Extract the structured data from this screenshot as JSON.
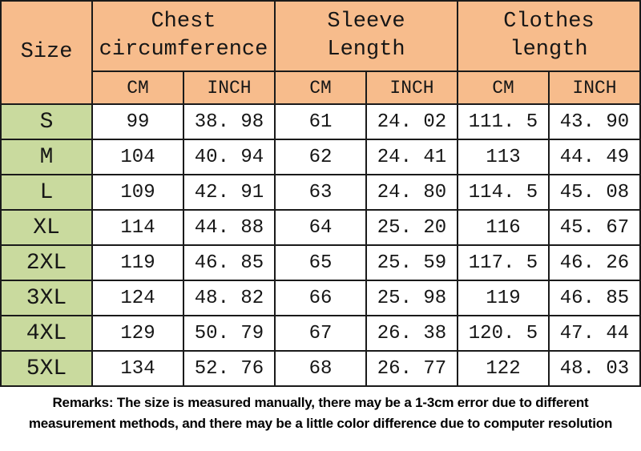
{
  "chart_data": {
    "type": "table",
    "title": "Garment size chart",
    "column_groups": [
      {
        "label": "Size",
        "span": 1
      },
      {
        "label": "Chest circumference",
        "span": 2
      },
      {
        "label": "Sleeve Length",
        "span": 2
      },
      {
        "label": "Clothes length",
        "span": 2
      }
    ],
    "unit_row": [
      "CM",
      "INCH",
      "CM",
      "INCH",
      "CM",
      "INCH"
    ],
    "rows": [
      {
        "size": "S",
        "chest_cm": 99,
        "chest_inch": 38.98,
        "sleeve_cm": 61,
        "sleeve_inch": 24.02,
        "clothes_cm": 111.5,
        "clothes_inch": 43.9
      },
      {
        "size": "M",
        "chest_cm": 104,
        "chest_inch": 40.94,
        "sleeve_cm": 62,
        "sleeve_inch": 24.41,
        "clothes_cm": 113,
        "clothes_inch": 44.49
      },
      {
        "size": "L",
        "chest_cm": 109,
        "chest_inch": 42.91,
        "sleeve_cm": 63,
        "sleeve_inch": 24.8,
        "clothes_cm": 114.5,
        "clothes_inch": 45.08
      },
      {
        "size": "XL",
        "chest_cm": 114,
        "chest_inch": 44.88,
        "sleeve_cm": 64,
        "sleeve_inch": 25.2,
        "clothes_cm": 116,
        "clothes_inch": 45.67
      },
      {
        "size": "2XL",
        "chest_cm": 119,
        "chest_inch": 46.85,
        "sleeve_cm": 65,
        "sleeve_inch": 25.59,
        "clothes_cm": 117.5,
        "clothes_inch": 46.26
      },
      {
        "size": "3XL",
        "chest_cm": 124,
        "chest_inch": 48.82,
        "sleeve_cm": 66,
        "sleeve_inch": 25.98,
        "clothes_cm": 119,
        "clothes_inch": 46.85
      },
      {
        "size": "4XL",
        "chest_cm": 129,
        "chest_inch": 50.79,
        "sleeve_cm": 67,
        "sleeve_inch": 26.38,
        "clothes_cm": 120.5,
        "clothes_inch": 47.44
      },
      {
        "size": "5XL",
        "chest_cm": 134,
        "chest_inch": 52.76,
        "sleeve_cm": 68,
        "sleeve_inch": 26.77,
        "clothes_cm": 122,
        "clothes_inch": 48.03
      }
    ]
  },
  "table": {
    "size_header": "Size",
    "groups": [
      {
        "line1": "Chest",
        "line2": "circumference"
      },
      {
        "line1": "Sleeve",
        "line2": "Length"
      },
      {
        "line1": "Clothes",
        "line2": "length"
      }
    ],
    "unit_headers": [
      "CM",
      "INCH",
      "CM",
      "INCH",
      "CM",
      "INCH"
    ],
    "rows": [
      {
        "size": "S",
        "values": [
          "99",
          "38. 98",
          "61",
          "24. 02",
          "111. 5",
          "43. 90"
        ]
      },
      {
        "size": "M",
        "values": [
          "104",
          "40. 94",
          "62",
          "24. 41",
          "113",
          "44. 49"
        ]
      },
      {
        "size": "L",
        "values": [
          "109",
          "42. 91",
          "63",
          "24. 80",
          "114. 5",
          "45. 08"
        ]
      },
      {
        "size": "XL",
        "values": [
          "114",
          "44. 88",
          "64",
          "25. 20",
          "116",
          "45. 67"
        ]
      },
      {
        "size": "2XL",
        "values": [
          "119",
          "46. 85",
          "65",
          "25. 59",
          "117. 5",
          "46. 26"
        ]
      },
      {
        "size": "3XL",
        "values": [
          "124",
          "48. 82",
          "66",
          "25. 98",
          "119",
          "46. 85"
        ]
      },
      {
        "size": "4XL",
        "values": [
          "129",
          "50. 79",
          "67",
          "26. 38",
          "120. 5",
          "47. 44"
        ]
      },
      {
        "size": "5XL",
        "values": [
          "134",
          "52. 76",
          "68",
          "26. 77",
          "122",
          "48. 03"
        ]
      }
    ]
  },
  "remarks": {
    "line1": "Remarks: The size is measured manually, there may be a 1-3cm error due to different",
    "line2": "measurement methods, and there may be a little color difference due to computer resolution"
  },
  "colors": {
    "header_bg": "#f7bc8c",
    "size_col_bg": "#c9da9e",
    "border": "#1a1a1a",
    "text": "#161616"
  }
}
